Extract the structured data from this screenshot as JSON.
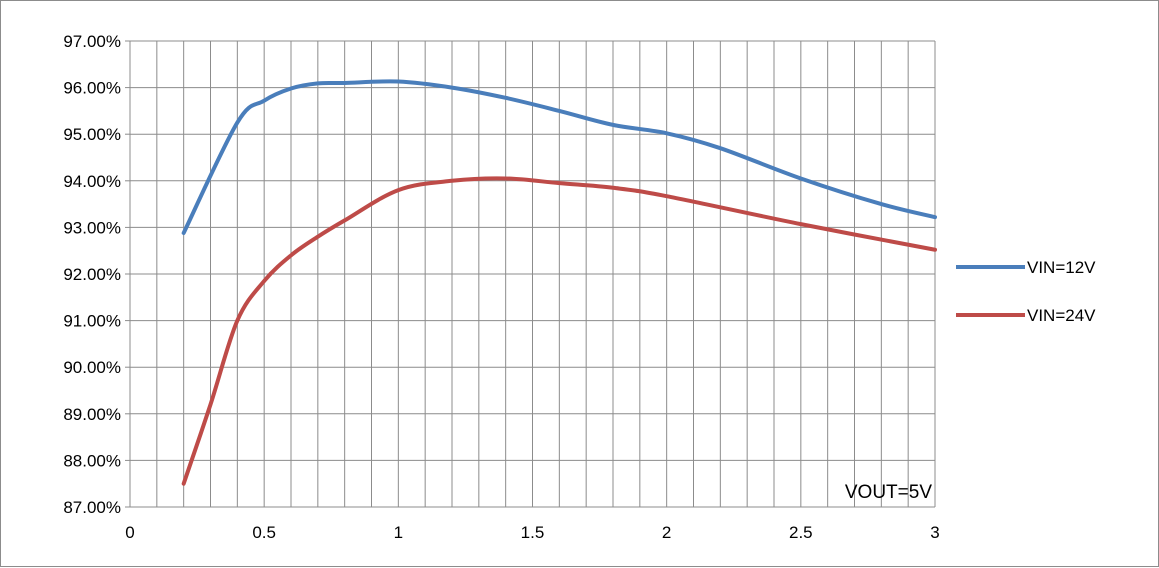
{
  "chart_data": {
    "type": "line",
    "title": "",
    "xlabel": "",
    "ylabel": "",
    "xlim": [
      0,
      3
    ],
    "ylim": [
      0.87,
      0.97
    ],
    "x_ticks": [
      "0",
      "0.5",
      "1",
      "1.5",
      "2",
      "2.5",
      "3"
    ],
    "x_tick_values": [
      0,
      0.5,
      1,
      1.5,
      2,
      2.5,
      3
    ],
    "y_ticks": [
      "87.00%",
      "88.00%",
      "89.00%",
      "90.00%",
      "91.00%",
      "92.00%",
      "93.00%",
      "94.00%",
      "95.00%",
      "96.00%",
      "97.00%"
    ],
    "y_tick_values": [
      0.87,
      0.88,
      0.89,
      0.9,
      0.91,
      0.92,
      0.93,
      0.94,
      0.95,
      0.96,
      0.97
    ],
    "x_minor_step": 0.1,
    "grid": true,
    "legend_position": "right",
    "annotation": "VOUT=5V",
    "series": [
      {
        "name": "VIN=12V",
        "color": "#4a7ebb",
        "x": [
          0.2,
          0.4,
          0.5,
          0.6,
          0.7,
          0.8,
          1.0,
          1.2,
          1.4,
          1.6,
          1.8,
          2.0,
          2.2,
          2.5,
          2.8,
          3.0
        ],
        "y": [
          0.9288,
          0.9525,
          0.9572,
          0.9598,
          0.9609,
          0.961,
          0.9613,
          0.96,
          0.9578,
          0.955,
          0.952,
          0.9502,
          0.947,
          0.9405,
          0.935,
          0.9322
        ]
      },
      {
        "name": "VIN=24V",
        "color": "#be4b48",
        "x": [
          0.2,
          0.3,
          0.4,
          0.5,
          0.6,
          0.7,
          0.8,
          1.0,
          1.2,
          1.4,
          1.6,
          1.8,
          2.0,
          2.5,
          3.0
        ],
        "y": [
          0.875,
          0.892,
          0.91,
          0.9185,
          0.924,
          0.928,
          0.9315,
          0.938,
          0.94,
          0.9405,
          0.9395,
          0.9385,
          0.9367,
          0.9307,
          0.9252
        ]
      }
    ]
  }
}
